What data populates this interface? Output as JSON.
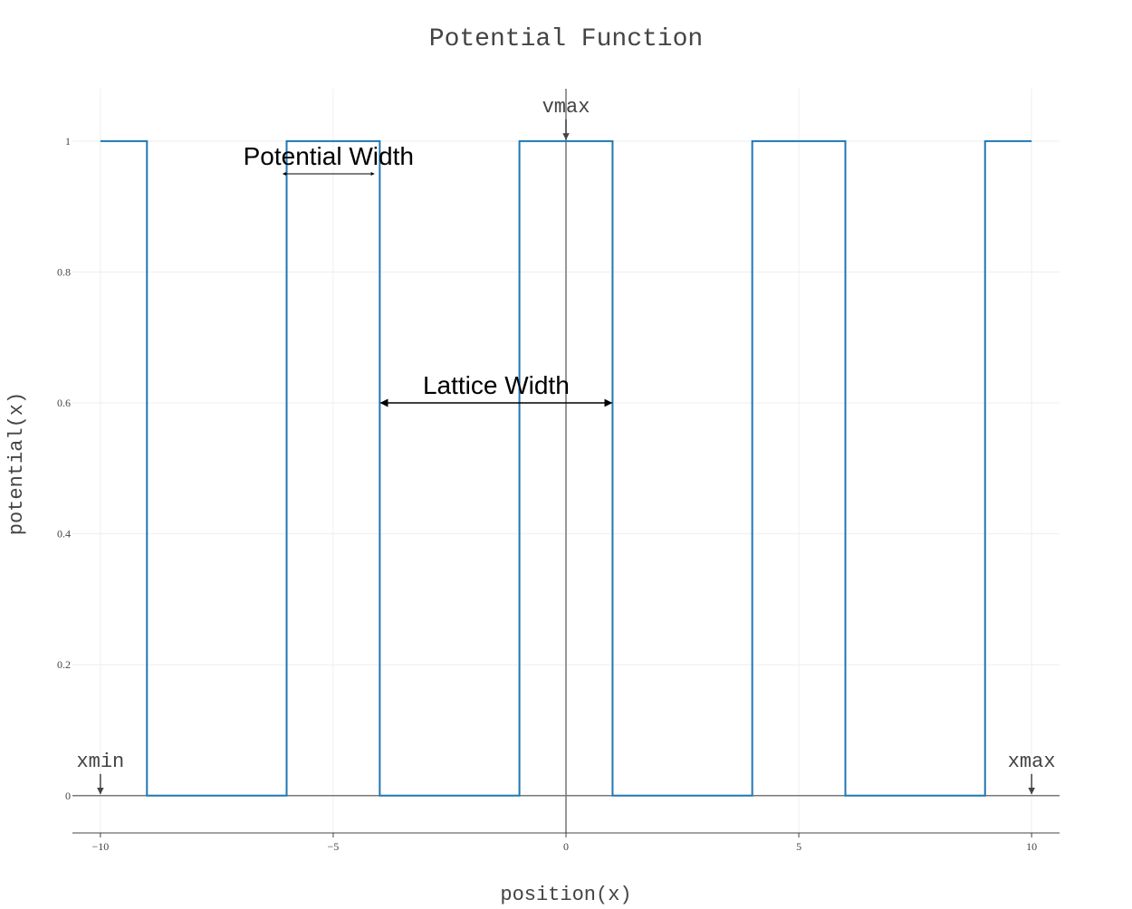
{
  "chart_data": {
    "type": "line",
    "line_shape": "step",
    "title": "Potential Function",
    "xlabel": "position(x)",
    "ylabel": "potential(x)",
    "xlim": [
      -10.6,
      10.6
    ],
    "ylim": [
      -0.057,
      1.08
    ],
    "x_ticks": [
      -10,
      -5,
      0,
      5,
      10
    ],
    "x_tick_labels": [
      "−10",
      "−5",
      "0",
      "5",
      "10"
    ],
    "y_ticks": [
      0,
      0.2,
      0.4,
      0.6,
      0.8,
      1
    ],
    "y_tick_labels": [
      "0",
      "0.2",
      "0.4",
      "0.6",
      "0.8",
      "1"
    ],
    "grid": true,
    "series": [
      {
        "x": [
          -10,
          -9,
          -9,
          -6,
          -6,
          -4,
          -4,
          -1,
          -1,
          1,
          1,
          4,
          4,
          6,
          6,
          9,
          9,
          10
        ],
        "y": [
          1,
          1,
          0,
          0,
          1,
          1,
          0,
          0,
          1,
          1,
          0,
          0,
          1,
          1,
          0,
          0,
          1,
          1
        ]
      }
    ],
    "annotations": [
      {
        "text": "vmax",
        "x": 0,
        "y": 1
      },
      {
        "text": "xmin",
        "x": -10,
        "y": 0
      },
      {
        "text": "xmax",
        "x": 10,
        "y": 0
      }
    ],
    "dimension_arrows": [
      {
        "text": "Potential Width",
        "x_start": -6.1,
        "x_end": -4.1,
        "y": 0.95
      },
      {
        "text": "Lattice Width",
        "x_start": -4.0,
        "x_end": 1.0,
        "y": 0.6
      }
    ],
    "colors": {
      "series": "#1f77b4",
      "grid": "#eeeeee",
      "axis_line": "#444444",
      "zero_line": "#777777",
      "title": "#444444",
      "annotation": "#444444",
      "dimension_text": "#000000"
    }
  }
}
